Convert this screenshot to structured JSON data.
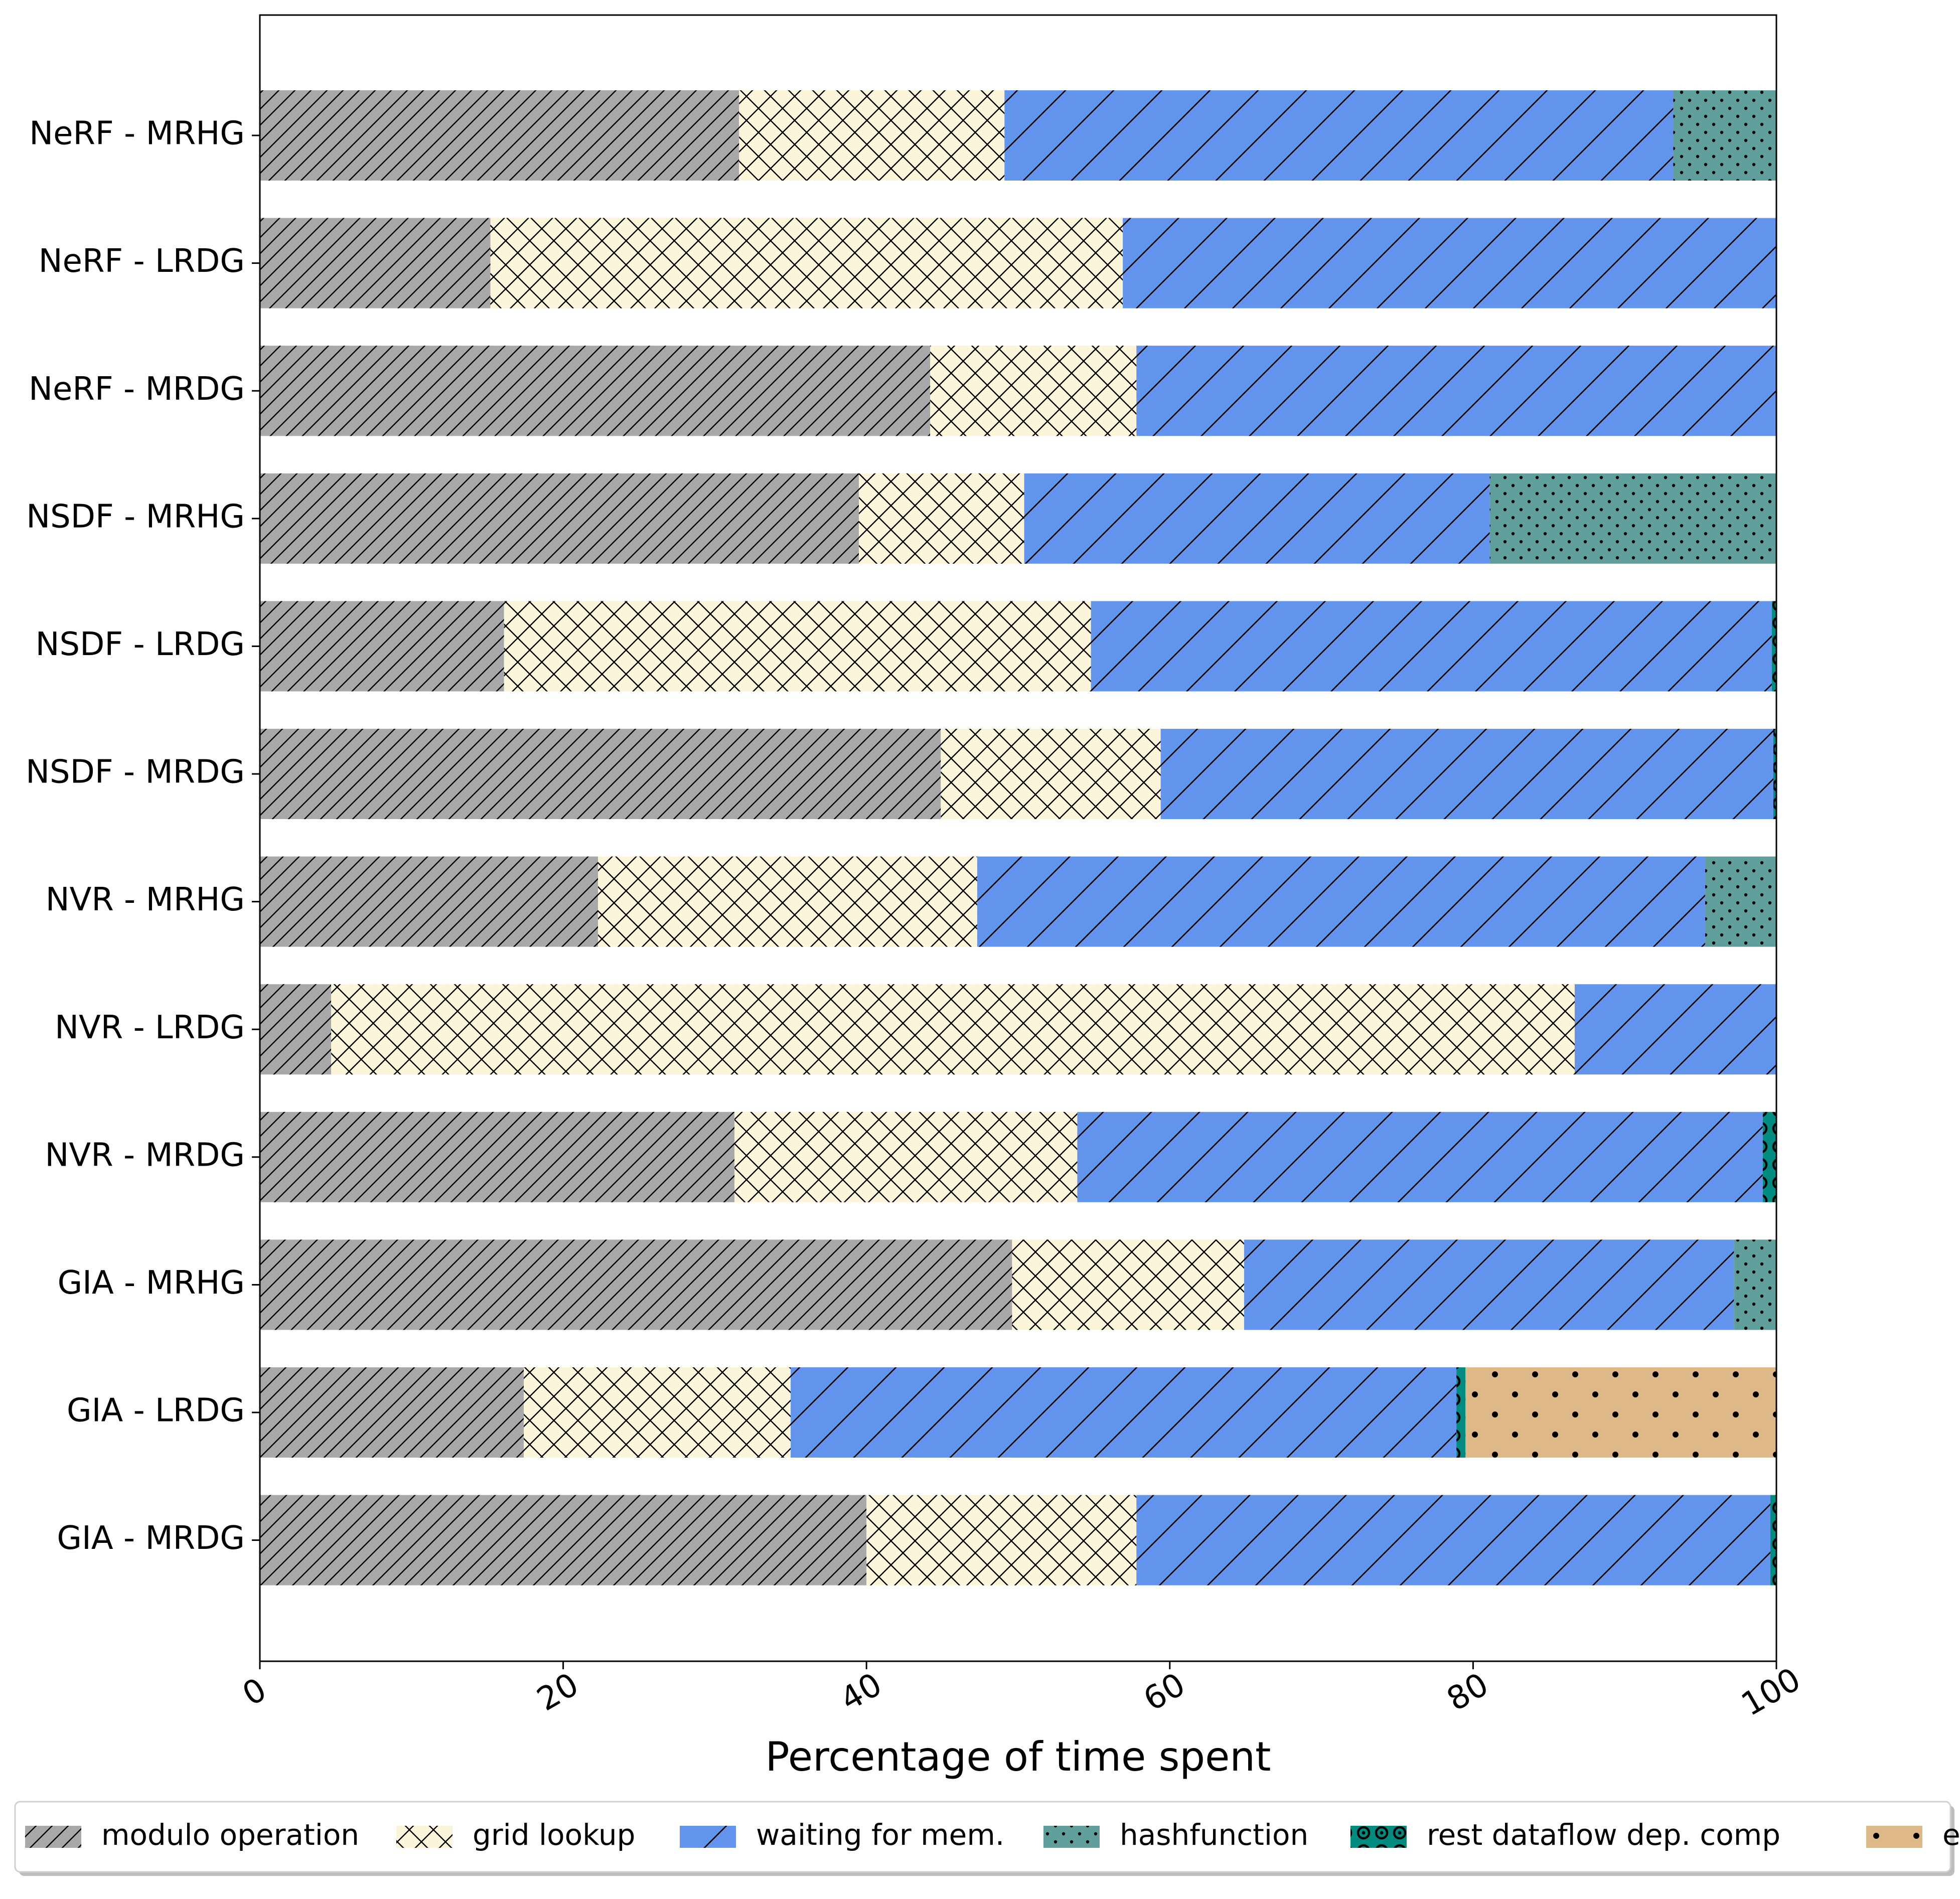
{
  "chart_data": {
    "type": "bar",
    "orientation": "horizontal",
    "stacked": true,
    "title": "",
    "xlabel": "Percentage of time spent",
    "ylabel": "",
    "xlim": [
      0,
      100
    ],
    "xticks": [
      "0",
      "20",
      "40",
      "60",
      "80",
      "100"
    ],
    "grid": false,
    "legend_position": "bottom",
    "categories": [
      "NeRF - MRHG",
      "NeRF - LRDG",
      "NeRF - MRDG",
      "NSDF - MRHG",
      "NSDF - LRDG",
      "NSDF - MRDG",
      "NVR - MRHG",
      "NVR - LRDG",
      "NVR - MRDG",
      "GIA - MRHG",
      "GIA - LRDG",
      "GIA - MRDG"
    ],
    "series": [
      {
        "name": "modulo operation",
        "color": "#a8a8a8",
        "pattern": "diagonal-hatch-dense",
        "values": [
          31.6,
          15.2,
          44.2,
          39.5,
          16.1,
          44.9,
          22.3,
          4.7,
          31.3,
          49.6,
          17.4,
          40.0
        ]
      },
      {
        "name": "grid lookup",
        "color": "#fcf4d8",
        "pattern": "cross-hatch",
        "values": [
          17.5,
          41.7,
          13.6,
          10.9,
          38.7,
          14.5,
          25.0,
          82.0,
          22.6,
          15.3,
          17.6,
          17.8
        ]
      },
      {
        "name": "waiting for mem.",
        "color": "#6495ed",
        "pattern": "diagonal-hatch-sparse",
        "values": [
          44.1,
          43.1,
          42.2,
          30.7,
          44.9,
          40.4,
          48.0,
          13.3,
          45.2,
          32.3,
          43.9,
          41.8
        ]
      },
      {
        "name": "hashfunction",
        "color": "#5f9e9a",
        "pattern": "small-dots",
        "values": [
          6.8,
          0,
          0,
          18.9,
          0,
          0,
          4.7,
          0,
          0,
          2.8,
          0,
          0
        ]
      },
      {
        "name": "rest dataflow dep. comp",
        "color": "#008b80",
        "pattern": "rings",
        "values": [
          0,
          0,
          0,
          0,
          0.3,
          0.2,
          0,
          0,
          0.9,
          0,
          0.6,
          0.4
        ]
      },
      {
        "name": "exp",
        "color": "#deb887",
        "pattern": "large-dots",
        "values": [
          0,
          0,
          0,
          0,
          0,
          0,
          0,
          0,
          0,
          0,
          20.5,
          0
        ]
      }
    ]
  }
}
